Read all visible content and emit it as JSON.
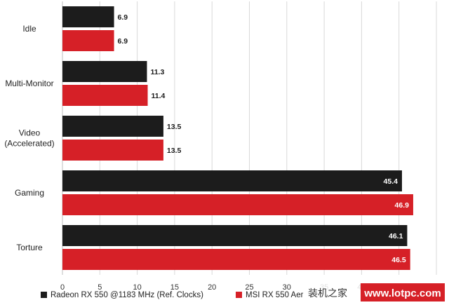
{
  "chart_data": {
    "type": "bar",
    "orientation": "horizontal",
    "categories": [
      "Idle",
      "Multi-Monitor",
      "Video\n(Accelerated)",
      "Gaming",
      "Torture"
    ],
    "series": [
      {
        "name": "Radeon RX 550 @1183 MHz (Ref. Clocks)",
        "color": "#1c1c1c",
        "label_color": "#1c1c1c",
        "values": [
          6.9,
          11.3,
          13.5,
          45.4,
          46.1
        ],
        "labels": [
          "6.9",
          "11.3",
          "13.5",
          "45.4",
          "46.1"
        ]
      },
      {
        "name": "MSI RX 550 Aer",
        "color": "#d62027",
        "label_color": "#1c1c1c",
        "values": [
          6.9,
          11.4,
          13.5,
          46.9,
          46.5
        ],
        "labels": [
          "6.9",
          "11.4",
          "13.5",
          "46.9",
          "46.5"
        ]
      }
    ],
    "xlim": [
      0,
      50
    ],
    "xticks": [
      "0",
      "5",
      "10",
      "15",
      "20",
      "25",
      "30",
      "35",
      "40",
      "45",
      "50"
    ],
    "grid": "vertical",
    "legend": "bottom-left"
  },
  "watermark": {
    "text": "装机之家",
    "url": "www.lotpc.com"
  }
}
